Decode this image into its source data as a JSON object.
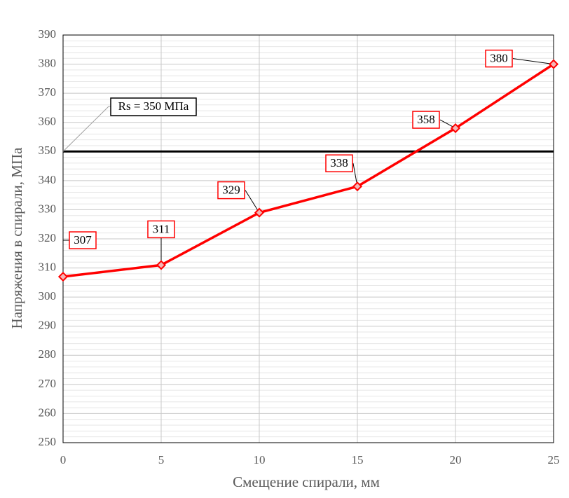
{
  "chart_data": {
    "type": "line",
    "x_label": "Смещение спирали, мм",
    "y_label": "Напряжения в спирали, МПа",
    "x": [
      0,
      5,
      10,
      15,
      20,
      25
    ],
    "series": [
      {
        "name": "Напряжения",
        "color": "#ff0000",
        "values": [
          307,
          311,
          329,
          338,
          358,
          380
        ]
      }
    ],
    "xlim": [
      0,
      25
    ],
    "xticks": [
      0,
      5,
      10,
      15,
      20,
      25
    ],
    "ylim": [
      250,
      390
    ],
    "yticks": [
      250,
      260,
      270,
      280,
      290,
      300,
      310,
      320,
      330,
      340,
      350,
      360,
      370,
      380,
      390
    ],
    "grid": true,
    "reference_line": {
      "value": 350,
      "label": "Rs = 350 МПа",
      "color": "#000000"
    }
  }
}
